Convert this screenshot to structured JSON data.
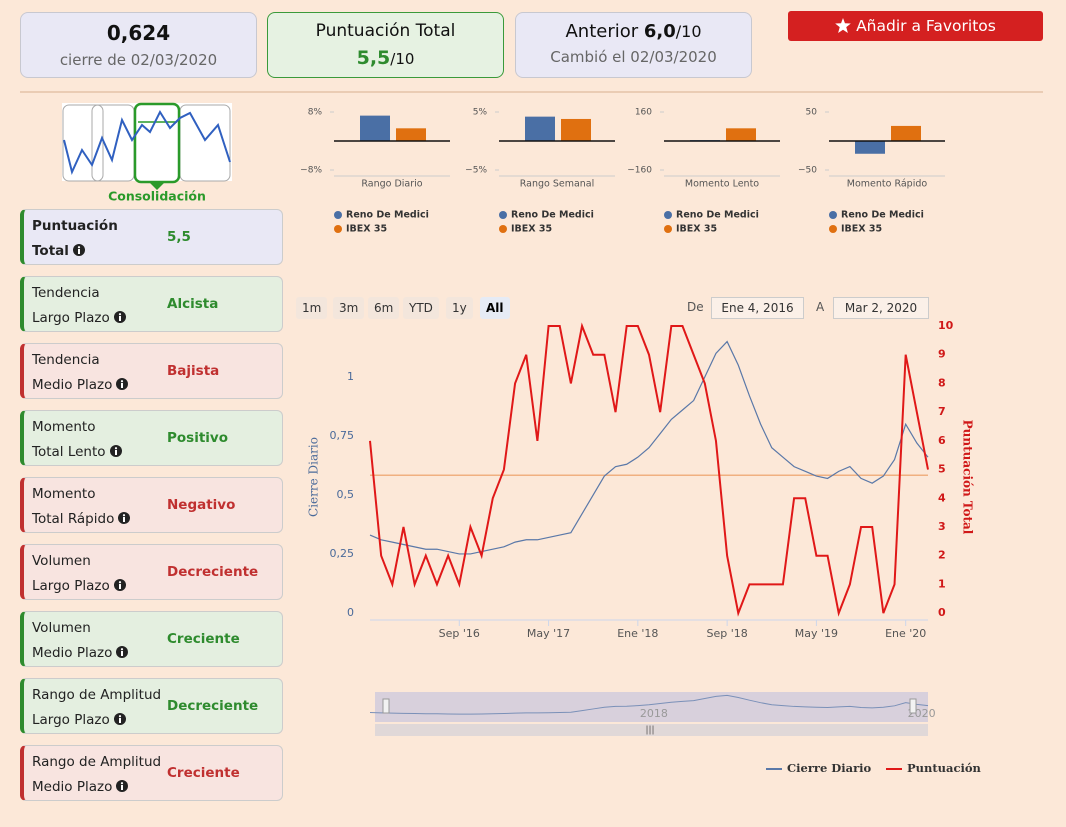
{
  "header": {
    "price": "0,624",
    "price_note": "cierre de 02/03/2020",
    "score_title": "Puntuación Total",
    "score": "5,5",
    "score_max": "/10",
    "previous_label": "Anterior",
    "previous": "6,0",
    "previous_max": "/10",
    "previous_note": "Cambió el 02/03/2020",
    "favorite_button": "Añadir a Favoritos"
  },
  "pattern": {
    "label": "Consolidación"
  },
  "indicators": [
    {
      "lines": [
        "Puntuación",
        "Total"
      ],
      "value": "5,5",
      "color": "#2e8b2e"
    },
    {
      "lines": [
        "Tendencia",
        "Largo Plazo"
      ],
      "value": "Alcista",
      "color": "#2e8b2e"
    },
    {
      "lines": [
        "Tendencia",
        "Medio Plazo"
      ],
      "value": "Bajista",
      "color": "#c03030"
    },
    {
      "lines": [
        "Momento",
        "Total Lento"
      ],
      "value": "Positivo",
      "color": "#2e8b2e"
    },
    {
      "lines": [
        "Momento",
        "Total Rápido"
      ],
      "value": "Negativo",
      "color": "#c03030"
    },
    {
      "lines": [
        "Volumen",
        "Largo Plazo"
      ],
      "value": "Decreciente",
      "color": "#c03030"
    },
    {
      "lines": [
        "Volumen",
        "Medio Plazo"
      ],
      "value": "Creciente",
      "color": "#2e8b2e"
    },
    {
      "lines": [
        "Rango de Amplitud",
        "Largo Plazo"
      ],
      "value": "Decreciente",
      "color": "#2e8b2e"
    },
    {
      "lines": [
        "Rango de Amplitud",
        "Medio Plazo"
      ],
      "value": "Creciente",
      "color": "#c03030"
    }
  ],
  "chart_data": [
    {
      "type": "bar",
      "xlabel": "Rango Diario",
      "ylim": [
        -8,
        8
      ],
      "yticks": [
        {
          "value": 8,
          "label": "8%"
        },
        {
          "value": -8,
          "label": "−8%"
        }
      ],
      "series": [
        {
          "name": "Reno De Medici",
          "color": "#4a6fa5",
          "values": [
            7
          ]
        },
        {
          "name": "IBEX 35",
          "color": "#e07010",
          "values": [
            3.5
          ]
        }
      ]
    },
    {
      "type": "bar",
      "xlabel": "Rango Semanal",
      "ylim": [
        -5,
        5
      ],
      "yticks": [
        {
          "value": 5,
          "label": "5%"
        },
        {
          "value": -5,
          "label": "−5%"
        }
      ],
      "series": [
        {
          "name": "Reno De Medici",
          "color": "#4a6fa5",
          "values": [
            4.2
          ]
        },
        {
          "name": "IBEX 35",
          "color": "#e07010",
          "values": [
            3.8
          ]
        }
      ]
    },
    {
      "type": "bar",
      "xlabel": "Momento Lento",
      "ylim": [
        -160,
        160
      ],
      "yticks": [
        160,
        {
          "value": -160,
          "label": "−160"
        }
      ],
      "series": [
        {
          "name": "Reno De Medici",
          "color": "#4a6fa5",
          "values": [
            5
          ]
        },
        {
          "name": "IBEX 35",
          "color": "#e07010",
          "values": [
            70
          ]
        }
      ]
    },
    {
      "type": "bar",
      "xlabel": "Momento Rápido",
      "ylim": [
        -50,
        50
      ],
      "yticks": [
        50,
        {
          "value": -50,
          "label": "−50"
        }
      ],
      "series": [
        {
          "name": "Reno De Medici",
          "color": "#4a6fa5",
          "values": [
            -22
          ]
        },
        {
          "name": "IBEX 35",
          "color": "#e07010",
          "values": [
            26
          ]
        }
      ]
    },
    {
      "type": "line",
      "x": [
        "2016-01",
        "2016-02",
        "2016-03",
        "2016-04",
        "2016-05",
        "2016-06",
        "2016-07",
        "2016-08",
        "2016-09",
        "2016-10",
        "2016-11",
        "2016-12",
        "2017-01",
        "2017-02",
        "2017-03",
        "2017-04",
        "2017-05",
        "2017-06",
        "2017-07",
        "2017-08",
        "2017-09",
        "2017-10",
        "2017-11",
        "2017-12",
        "2018-01",
        "2018-02",
        "2018-03",
        "2018-04",
        "2018-05",
        "2018-06",
        "2018-07",
        "2018-08",
        "2018-09",
        "2018-10",
        "2018-11",
        "2018-12",
        "2019-01",
        "2019-02",
        "2019-03",
        "2019-04",
        "2019-05",
        "2019-06",
        "2019-07",
        "2019-08",
        "2019-09",
        "2019-10",
        "2019-11",
        "2019-12",
        "2020-01",
        "2020-02",
        "2020-03"
      ],
      "xlim": [
        "2016-01",
        "2020-03"
      ],
      "xticks": [
        {
          "value": "2016-09",
          "label": "Sep '16"
        },
        {
          "value": "2017-05",
          "label": "May '17"
        },
        {
          "value": "2018-01",
          "label": "Ene '18"
        },
        {
          "value": "2018-09",
          "label": "Sep '18"
        },
        {
          "value": "2019-05",
          "label": "May '19"
        },
        {
          "value": "2020-01",
          "label": "Ene '20"
        }
      ],
      "ylabel": "Cierre Diario",
      "y2label": "Puntuación Total",
      "ylim": [
        -0.03,
        1.216
      ],
      "yticks": [
        0,
        {
          "value": 0.25,
          "label": "0,25"
        },
        {
          "value": 0.5,
          "label": "0,5"
        },
        {
          "value": 0.75,
          "label": "0,75"
        },
        1
      ],
      "y2lim": [
        -0.24,
        10
      ],
      "y2ticks": [
        0,
        1,
        2,
        3,
        4,
        5,
        6,
        7,
        8,
        9,
        10
      ],
      "series": [
        {
          "name": "Cierre Diario",
          "color": "#5a78a8",
          "values": [
            0.33,
            0.31,
            0.3,
            0.29,
            0.28,
            0.27,
            0.27,
            0.26,
            0.25,
            0.25,
            0.26,
            0.27,
            0.28,
            0.3,
            0.31,
            0.31,
            0.32,
            0.33,
            0.34,
            0.42,
            0.5,
            0.58,
            0.62,
            0.63,
            0.66,
            0.7,
            0.76,
            0.82,
            0.86,
            0.9,
            1.0,
            1.1,
            1.15,
            1.05,
            0.92,
            0.8,
            0.7,
            0.66,
            0.62,
            0.6,
            0.58,
            0.57,
            0.6,
            0.62,
            0.57,
            0.55,
            0.58,
            0.65,
            0.8,
            0.72,
            0.66
          ]
        },
        {
          "name": "Puntuación",
          "color": "#e01818",
          "axis": "y2",
          "values": [
            6,
            2,
            1,
            3,
            1,
            2,
            1,
            2,
            1,
            3,
            2,
            4,
            5,
            8,
            9,
            6,
            10,
            10,
            8,
            10,
            9,
            9,
            7,
            10,
            10,
            9,
            7,
            10,
            10,
            9,
            8,
            6,
            2,
            0,
            1,
            1,
            1,
            1,
            4,
            4,
            2,
            2,
            0,
            1,
            3,
            3,
            0,
            1,
            9,
            7,
            5
          ]
        }
      ],
      "reference_line": {
        "value": 4.8,
        "axis": "y2",
        "color": "#f0b080"
      },
      "range_buttons": [
        "1m",
        "3m",
        "6m",
        "YTD",
        "1y",
        "All"
      ],
      "selected_range": 5,
      "range_from_label": "De",
      "range_from": "Ene 4, 2016",
      "range_to_label": "A",
      "range_to": "Mar 2, 2020",
      "navigator_labels": [
        {
          "value": "2018-01",
          "label": "2018"
        },
        {
          "value": "2020-01",
          "label": "2020"
        }
      ]
    }
  ]
}
